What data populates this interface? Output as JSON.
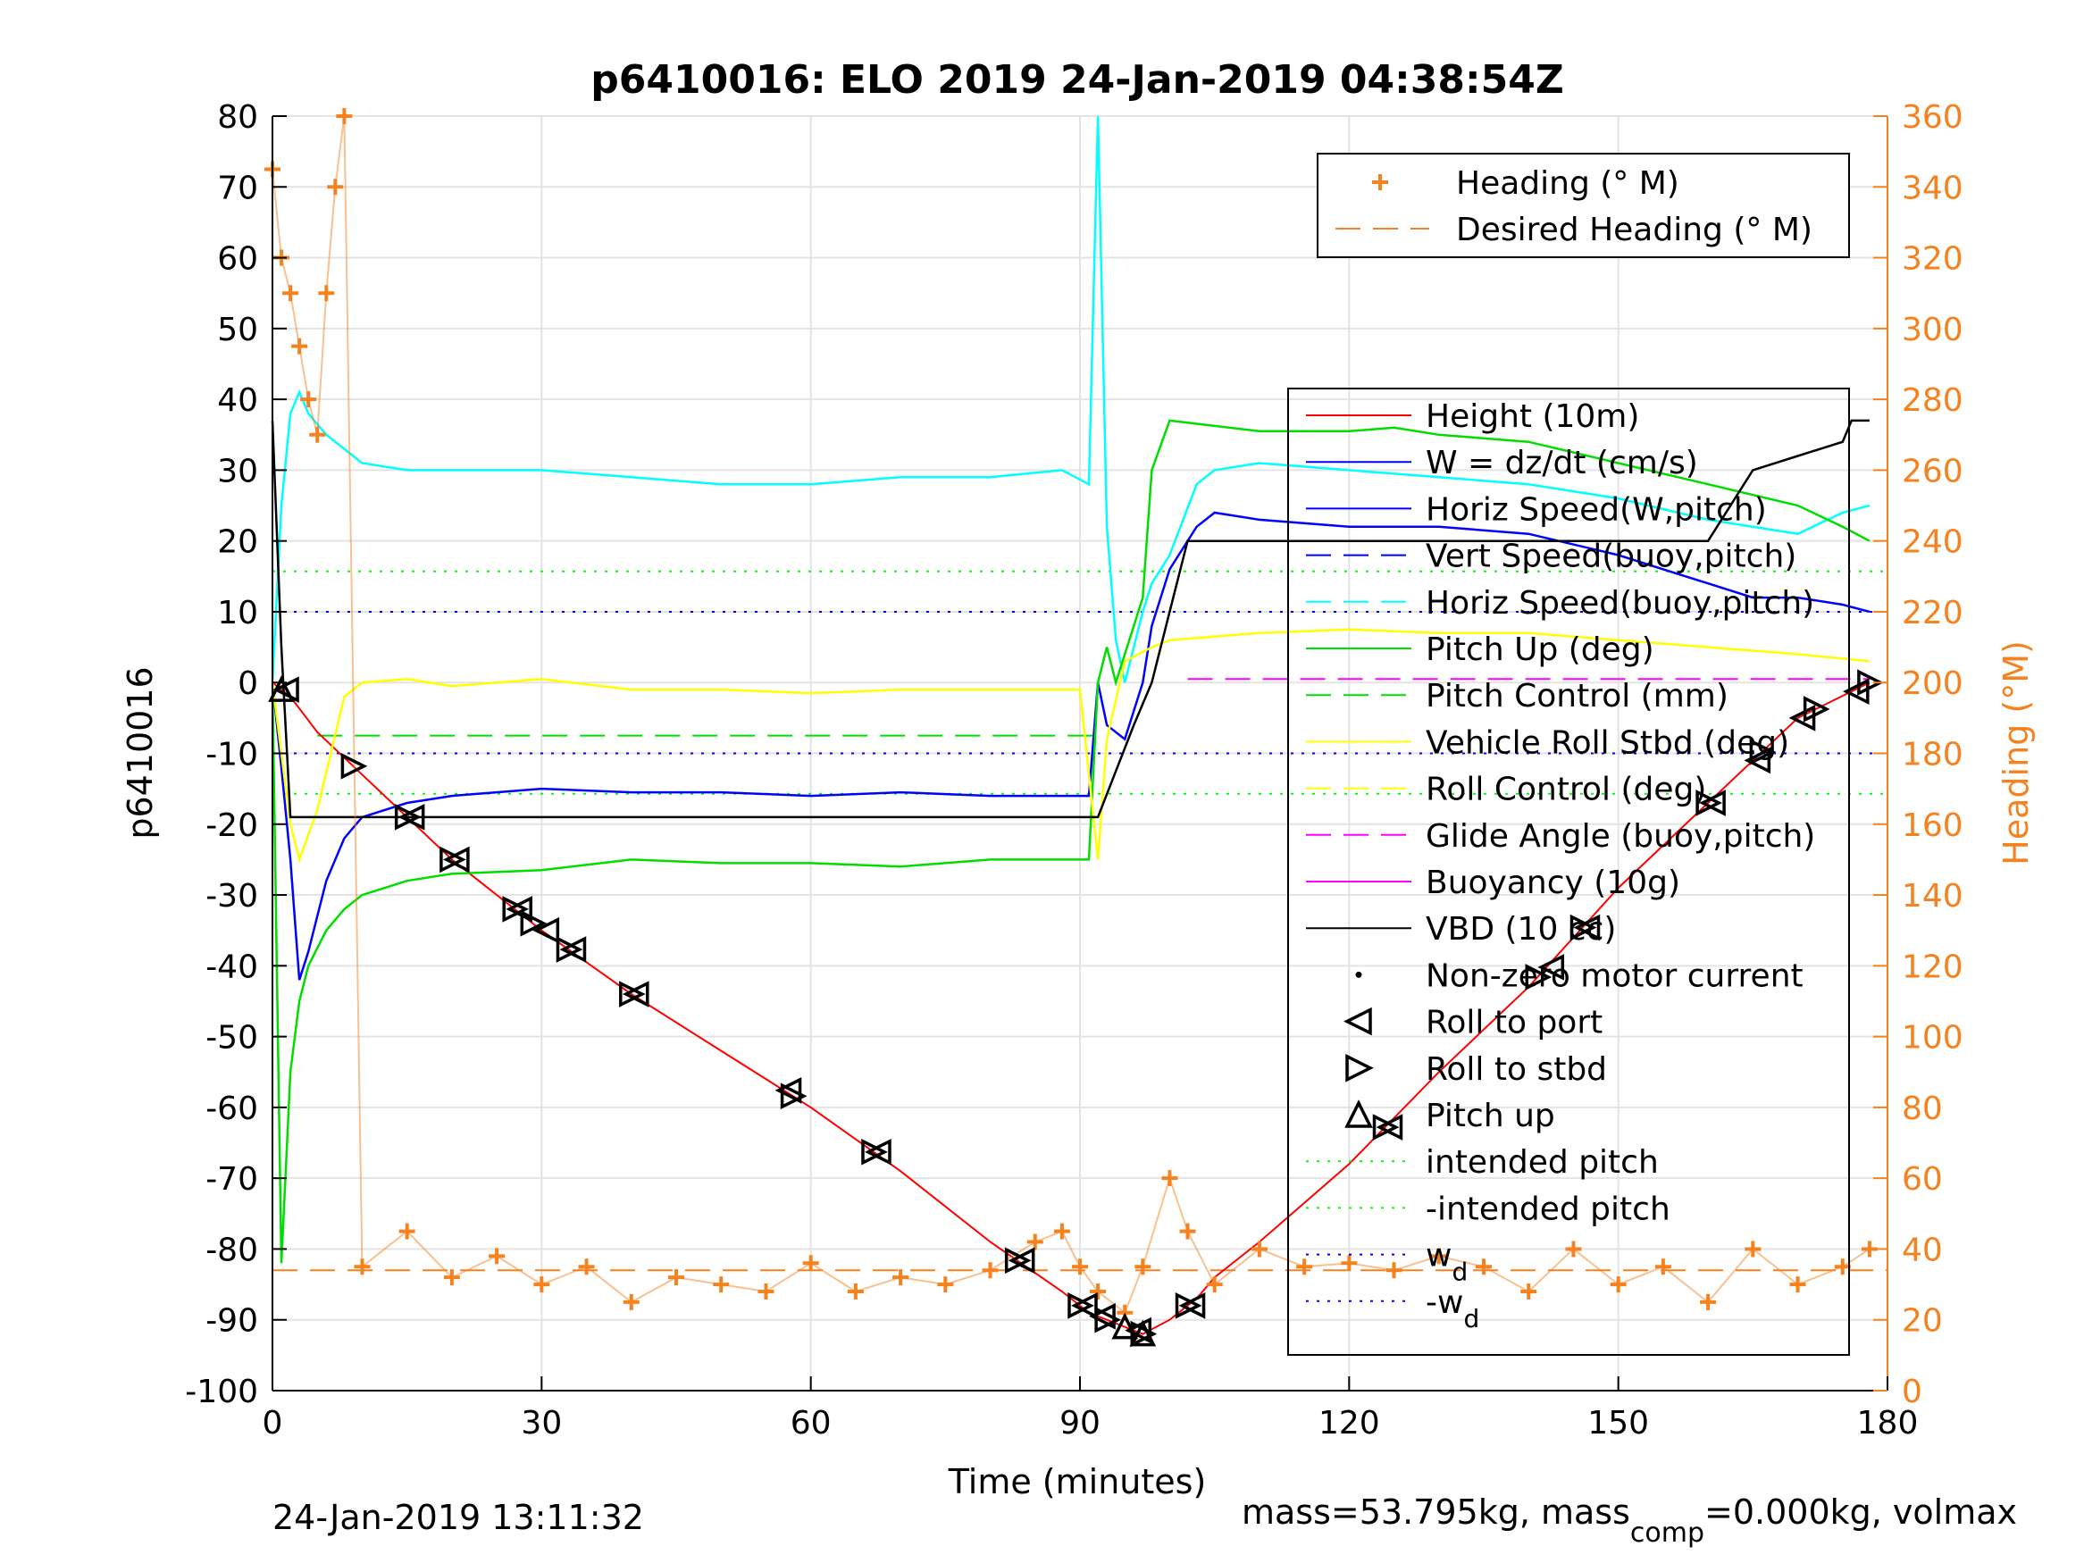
{
  "chart_data": {
    "type": "line",
    "title": "p6410016: ELO 2019 24-Jan-2019 04:38:54Z",
    "xlabel": "Time (minutes)",
    "ylabel": "p6410016",
    "ylabel_right": "Heading (°M)",
    "xlim": [
      0,
      180
    ],
    "ylim": [
      -100,
      80
    ],
    "ylim_right": [
      0,
      360
    ],
    "x_ticks": [
      "0",
      "30",
      "60",
      "90",
      "120",
      "150",
      "180"
    ],
    "y_ticks": [
      "80",
      "70",
      "60",
      "50",
      "40",
      "30",
      "20",
      "10",
      "0",
      "-10",
      "-20",
      "-30",
      "-40",
      "-50",
      "-60",
      "-70",
      "-80",
      "-90",
      "-100"
    ],
    "y_ticks_right": [
      "360",
      "340",
      "320",
      "300",
      "280",
      "260",
      "240",
      "220",
      "200",
      "180",
      "160",
      "140",
      "120",
      "100",
      "80",
      "60",
      "40",
      "20",
      "0"
    ],
    "grid": true,
    "legend_top": [
      {
        "label": "Heading (° M)",
        "color": "#f5821f",
        "style": "plus"
      },
      {
        "label": "Desired Heading (° M)",
        "color": "#f5821f",
        "style": "dashed"
      }
    ],
    "legend_main": [
      {
        "label": "Height (10m)",
        "color": "#ff0000",
        "style": "solid"
      },
      {
        "label": "W = dz/dt (cm/s)",
        "color": "#0000ff",
        "style": "solid"
      },
      {
        "label": "Horiz Speed(W,pitch)",
        "color": "#0000ff",
        "style": "solid"
      },
      {
        "label": "Vert Speed(buoy,pitch)",
        "color": "#0000ff",
        "style": "dashed"
      },
      {
        "label": "Horiz Speed(buoy,pitch)",
        "color": "#00ffff",
        "style": "dashed"
      },
      {
        "label": "Pitch Up (deg)",
        "color": "#00dd00",
        "style": "solid"
      },
      {
        "label": "Pitch Control (mm)",
        "color": "#00dd00",
        "style": "dashed"
      },
      {
        "label": "Vehicle Roll Stbd (deg)",
        "color": "#ffff00",
        "style": "solid"
      },
      {
        "label": "Roll Control (deg)",
        "color": "#ffff00",
        "style": "dashed"
      },
      {
        "label": "Glide Angle (buoy,pitch)",
        "color": "#ff00ff",
        "style": "dashed"
      },
      {
        "label": "Buoyancy (10g)",
        "color": "#ff00ff",
        "style": "solid"
      },
      {
        "label": "VBD (10 cc)",
        "color": "#000000",
        "style": "solid"
      },
      {
        "label": "Non-zero motor current",
        "color": "#000000",
        "style": "dot"
      },
      {
        "label": "Roll to port",
        "color": "#000000",
        "style": "tri-left"
      },
      {
        "label": "Roll to stbd",
        "color": "#000000",
        "style": "tri-right"
      },
      {
        "label": "Pitch up",
        "color": "#000000",
        "style": "tri-up"
      },
      {
        "label": "intended pitch",
        "color": "#00ff00",
        "style": "dotted"
      },
      {
        "label": "-intended pitch",
        "color": "#00ff00",
        "style": "dotted"
      },
      {
        "label": "w_d",
        "color": "#0000ff",
        "style": "dotted"
      },
      {
        "label": "-w_d",
        "color": "#0000ff",
        "style": "dotted"
      }
    ],
    "reference_lines": [
      {
        "name": "intended pitch",
        "y": 15.7,
        "color": "#00ff00"
      },
      {
        "name": "-intended pitch",
        "y": -15.7,
        "color": "#00ff00"
      },
      {
        "name": "w_d",
        "y": 10,
        "color": "#0000ff"
      },
      {
        "name": "-w_d",
        "y": -10,
        "color": "#0000ff"
      },
      {
        "name": "Pitch Control (mm)",
        "y": -7.5,
        "x_range": [
          5,
          92
        ],
        "color": "#00dd00"
      },
      {
        "name": "Glide Angle (buoy,pitch)",
        "y": 0.5,
        "x_range": [
          102,
          178
        ],
        "color": "#ff00ff"
      },
      {
        "name": "Desired Heading (° M)",
        "y_right": 34,
        "color": "#f5821f"
      }
    ],
    "series": [
      {
        "name": "Height (10m)",
        "color": "#ff0000",
        "x": [
          0,
          1,
          2,
          5,
          10,
          20,
          30,
          40,
          50,
          60,
          70,
          80,
          88,
          91,
          95,
          97,
          100,
          103,
          105,
          110,
          120,
          130,
          140,
          150,
          160,
          170,
          178
        ],
        "y": [
          0,
          -1,
          -2,
          -7,
          -13,
          -25,
          -35,
          -44,
          -52,
          -60,
          -69,
          -79,
          -86,
          -89,
          -91,
          -92,
          -90,
          -87,
          -84,
          -79,
          -68,
          -55,
          -43,
          -29,
          -17,
          -5,
          0
        ]
      },
      {
        "name": "W = dz/dt (cm/s)",
        "color": "#0000ff",
        "x": [
          0,
          1,
          2,
          3,
          4,
          5,
          6,
          8,
          10,
          15,
          20,
          30,
          40,
          50,
          60,
          70,
          80,
          85,
          91,
          92,
          93,
          95,
          96,
          97,
          98,
          100,
          103,
          105,
          110,
          120,
          130,
          140,
          150,
          155,
          160,
          165,
          170,
          175,
          178
        ],
        "y": [
          0,
          -12,
          -25,
          -42,
          -38,
          -33,
          -28,
          -22,
          -19,
          -17,
          -16,
          -15,
          -15.5,
          -15.5,
          -16,
          -15.5,
          -16,
          -16,
          -16,
          0,
          -6,
          -8,
          -4,
          0,
          8,
          16,
          22,
          24,
          23,
          22,
          22,
          21,
          18,
          16,
          14,
          12,
          12,
          11,
          10
        ]
      },
      {
        "name": "Horiz Speed(buoy,pitch)",
        "color": "#00ffff",
        "x": [
          0,
          1,
          2,
          3,
          4,
          6,
          8,
          10,
          15,
          20,
          30,
          40,
          50,
          60,
          70,
          80,
          88,
          91,
          92,
          93,
          94,
          95,
          96,
          97,
          98,
          100,
          103,
          105,
          110,
          120,
          130,
          140,
          150,
          160,
          170,
          175,
          178
        ],
        "y": [
          0,
          25,
          38,
          41,
          38,
          35,
          33,
          31,
          30,
          30,
          30,
          29,
          28,
          28,
          29,
          29,
          30,
          28,
          80,
          22,
          6,
          0,
          5,
          10,
          14,
          18,
          28,
          30,
          31,
          30,
          29,
          28,
          26,
          23,
          21,
          24,
          25
        ]
      },
      {
        "name": "Pitch Up (deg)",
        "color": "#00dd00",
        "x": [
          0,
          1,
          2,
          3,
          4,
          6,
          8,
          10,
          15,
          20,
          30,
          40,
          50,
          60,
          70,
          80,
          91,
          92,
          93,
          94,
          95,
          96,
          97,
          98,
          100,
          110,
          120,
          125,
          130,
          140,
          150,
          160,
          170,
          175,
          178
        ],
        "y": [
          0,
          -82,
          -55,
          -45,
          -40,
          -35,
          -32,
          -30,
          -28,
          -27,
          -26.5,
          -25,
          -25.5,
          -25.5,
          -26,
          -25,
          -25,
          0,
          5,
          0,
          4,
          8,
          12,
          30,
          37,
          35.5,
          35.5,
          36,
          35,
          34,
          31,
          28,
          25,
          22,
          20
        ]
      },
      {
        "name": "Vehicle Roll Stbd (deg)",
        "color": "#ffff00",
        "x": [
          0,
          1,
          2,
          3,
          5,
          8,
          10,
          15,
          20,
          30,
          40,
          50,
          60,
          70,
          80,
          90,
          92,
          93,
          95,
          98,
          100,
          110,
          120,
          130,
          140,
          150,
          160,
          170,
          178
        ],
        "y": [
          0,
          -10,
          -20,
          -25,
          -18,
          -2,
          0,
          0.5,
          -0.5,
          0.5,
          -1,
          -1,
          -1.5,
          -1,
          -1,
          -1,
          -25,
          -8,
          3,
          5,
          6,
          7,
          7.5,
          7,
          7,
          6,
          5,
          4,
          3
        ]
      },
      {
        "name": "VBD (10 cc)",
        "color": "#000000",
        "x": [
          0,
          1,
          2,
          5,
          30,
          60,
          80,
          92,
          96,
          98,
          100,
          102,
          110,
          120,
          150,
          160,
          165,
          170,
          175,
          176,
          178
        ],
        "y": [
          37,
          5,
          -19,
          -19,
          -19,
          -19,
          -19,
          -19,
          -6,
          0,
          10,
          20,
          20,
          20,
          20,
          20,
          30,
          32,
          34,
          37,
          37
        ]
      },
      {
        "name": "Heading (° M)",
        "color": "#f5821f",
        "axis": "right",
        "x": [
          0,
          1,
          2,
          3,
          4,
          5,
          6,
          7,
          8,
          10,
          15,
          20,
          25,
          30,
          35,
          40,
          45,
          50,
          55,
          60,
          65,
          70,
          75,
          80,
          85,
          88,
          90,
          92,
          95,
          97,
          100,
          102,
          105,
          110,
          115,
          120,
          125,
          130,
          135,
          140,
          145,
          150,
          155,
          160,
          165,
          170,
          175,
          178
        ],
        "y": [
          345,
          320,
          310,
          295,
          280,
          270,
          310,
          340,
          360,
          35,
          45,
          32,
          38,
          30,
          35,
          25,
          32,
          30,
          28,
          36,
          28,
          32,
          30,
          34,
          42,
          45,
          35,
          28,
          22,
          35,
          60,
          45,
          30,
          40,
          35,
          36,
          34,
          38,
          35,
          28,
          40,
          30,
          35,
          25,
          40,
          30,
          35,
          40
        ]
      }
    ],
    "markers": {
      "roll_to_port_x": [
        1,
        15,
        20,
        27,
        30,
        33,
        40,
        57,
        67,
        83,
        90,
        92,
        96,
        102,
        124,
        142,
        146,
        160,
        165,
        170,
        176
      ],
      "roll_to_stbd_x": [
        9,
        15,
        20,
        27,
        29,
        33,
        40,
        58,
        67,
        83,
        90,
        93,
        97,
        102,
        124,
        141,
        146,
        160,
        166,
        172,
        178
      ],
      "pitch_up_x": [
        1,
        95,
        97
      ]
    },
    "legend_placement_top": "top-right",
    "legend_placement_main": "right"
  },
  "footer": {
    "left": "24-Jan-2019 13:11:32",
    "right_prefix": "mass=53.795kg, mass",
    "right_sub": "comp",
    "right_suffix": "=0.000kg, volmax"
  }
}
